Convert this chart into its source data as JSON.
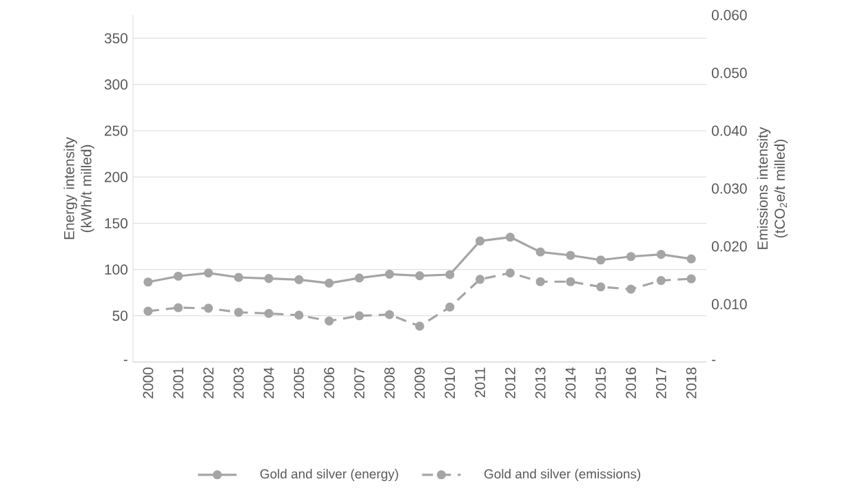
{
  "chart_data": {
    "type": "line",
    "ylabel": "Energy intensity (kWh/t milled)",
    "y2label": "Emissions intensity (tCO$_{2}$e/t milled)",
    "categories": [
      "2000",
      "2001",
      "2002",
      "2003",
      "2004",
      "2005",
      "2006",
      "2007",
      "2008",
      "2009",
      "2010",
      "2011",
      "2012",
      "2013",
      "2014",
      "2015",
      "2016",
      "2017",
      "2018"
    ],
    "series": [
      {
        "name": "Gold and silver (energy)",
        "color": "#a5a5a5",
        "line_style": "solid",
        "values": [
          86.5,
          92.8,
          96.3,
          91.5,
          90.3,
          89,
          85.3,
          90.8,
          95,
          93.3,
          94.5,
          130.8,
          135,
          119,
          115.3,
          110.3,
          114,
          116.3,
          111.5
        ]
      },
      {
        "name": "Gold and silver (emissions)",
        "color": "#a5a5a5",
        "line_style": "dashed",
        "axis": "y2",
        "values": [
          0.0088,
          0.0094,
          0.0093,
          0.0086,
          0.0084,
          0.0081,
          0.0071,
          0.008,
          0.0082,
          0.0062,
          0.0095,
          0.0143,
          0.0154,
          0.0139,
          0.0139,
          0.013,
          0.0126,
          0.0141,
          0.0144
        ]
      }
    ],
    "ylim": [
      0,
      375
    ],
    "yticks": [
      {
        "value": 0,
        "label": "-"
      },
      50,
      100,
      150,
      200,
      250,
      300,
      350
    ],
    "y2lim": [
      0,
      0.06
    ],
    "y2ticks": [
      {
        "value": 0,
        "label": "-"
      },
      {
        "value": 0.01,
        "label": "0.010"
      },
      {
        "value": 0.02,
        "label": "0.020"
      },
      {
        "value": 0.03,
        "label": "0.030"
      },
      {
        "value": 0.04,
        "label": "0.040"
      },
      {
        "value": 0.05,
        "label": "0.050"
      },
      {
        "value": 0.06,
        "label": "0.060"
      }
    ],
    "grid": "y",
    "legend": "bottom",
    "marker": "circle"
  }
}
